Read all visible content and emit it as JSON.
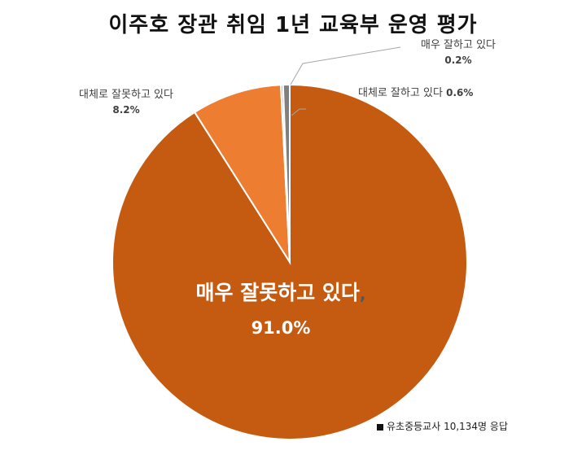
{
  "chart_data": {
    "type": "pie",
    "title": "이주호 장관 취임 1년 교육부 운영 평가",
    "slices": [
      {
        "label": "매우 잘못하고 있다",
        "value": 91.0,
        "value_text": "91.0%",
        "color": "#c55a11"
      },
      {
        "label": "대체로 잘못하고 있다",
        "value": 8.2,
        "value_text": "8.2%",
        "color": "#ed7d31"
      },
      {
        "label": "매우 잘하고 있다",
        "value": 0.2,
        "value_text": "0.2%",
        "color": "#a5a5a5"
      },
      {
        "label": "대체로 잘하고 있다",
        "value": 0.6,
        "value_text": "0.6%",
        "color": "#808080"
      }
    ],
    "note": "유초중등교사 10,134명 응답"
  }
}
